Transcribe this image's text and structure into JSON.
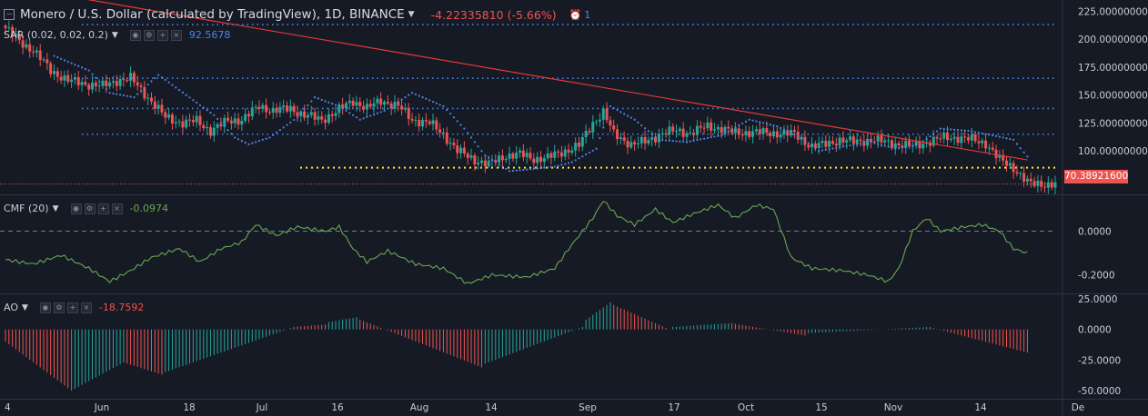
{
  "header": {
    "title": "Monero / U.S. Dollar (calculated by TradingView), 1D, BINANCE",
    "change": "-4.22335810 (-5.66%)",
    "badge": "1"
  },
  "current_price_label": "70.38921600",
  "colors": {
    "background": "#161a25",
    "up": "#26a69a",
    "down": "#ef5350",
    "sar": "#4a86e8",
    "cmf": "#6aa84f",
    "trendline": "#e53935",
    "support": "#ffeb3b"
  },
  "chart_data": [
    {
      "type": "candlestick",
      "title": "Monero / U.S. Dollar (calculated by TradingView), 1D, BINANCE",
      "indicator": {
        "name": "SAR (0.02, 0.02, 0.2)",
        "value": "92.5678"
      },
      "x_ticks": [
        "4",
        "Jun",
        "18",
        "Jul",
        "16",
        "Aug",
        "14",
        "Sep",
        "17",
        "Oct",
        "15",
        "Nov",
        "14",
        "De"
      ],
      "y_ticks": [
        "225.00000000",
        "200.00000000",
        "175.00000000",
        "150.00000000",
        "125.00000000",
        "100.00000000"
      ],
      "ylim": [
        62,
        235
      ],
      "close_series": [
        {
          "x": 0,
          "y": 210
        },
        {
          "x": 4,
          "y": 198
        },
        {
          "x": 8,
          "y": 190
        },
        {
          "x": 13,
          "y": 172
        },
        {
          "x": 18,
          "y": 163
        },
        {
          "x": 23,
          "y": 160
        },
        {
          "x": 28,
          "y": 158
        },
        {
          "x": 32,
          "y": 163
        },
        {
          "x": 36,
          "y": 165
        },
        {
          "x": 41,
          "y": 148
        },
        {
          "x": 46,
          "y": 130
        },
        {
          "x": 51,
          "y": 125
        },
        {
          "x": 55,
          "y": 127
        },
        {
          "x": 59,
          "y": 118
        },
        {
          "x": 64,
          "y": 127
        },
        {
          "x": 68,
          "y": 128
        },
        {
          "x": 73,
          "y": 140
        },
        {
          "x": 77,
          "y": 136
        },
        {
          "x": 82,
          "y": 138
        },
        {
          "x": 86,
          "y": 132
        },
        {
          "x": 91,
          "y": 128
        },
        {
          "x": 95,
          "y": 135
        },
        {
          "x": 100,
          "y": 145
        },
        {
          "x": 104,
          "y": 138
        },
        {
          "x": 108,
          "y": 145
        },
        {
          "x": 113,
          "y": 140
        },
        {
          "x": 117,
          "y": 128
        },
        {
          "x": 122,
          "y": 125
        },
        {
          "x": 126,
          "y": 115
        },
        {
          "x": 130,
          "y": 100
        },
        {
          "x": 135,
          "y": 92
        },
        {
          "x": 139,
          "y": 88
        },
        {
          "x": 144,
          "y": 96
        },
        {
          "x": 148,
          "y": 97
        },
        {
          "x": 152,
          "y": 93
        },
        {
          "x": 156,
          "y": 94
        },
        {
          "x": 161,
          "y": 100
        },
        {
          "x": 165,
          "y": 105
        },
        {
          "x": 169,
          "y": 125
        },
        {
          "x": 172,
          "y": 135
        },
        {
          "x": 175,
          "y": 115
        },
        {
          "x": 180,
          "y": 106
        },
        {
          "x": 184,
          "y": 108
        },
        {
          "x": 189,
          "y": 116
        },
        {
          "x": 193,
          "y": 118
        },
        {
          "x": 197,
          "y": 116
        },
        {
          "x": 202,
          "y": 122
        },
        {
          "x": 206,
          "y": 120
        },
        {
          "x": 210,
          "y": 116
        },
        {
          "x": 215,
          "y": 117
        },
        {
          "x": 219,
          "y": 116
        },
        {
          "x": 223,
          "y": 116
        },
        {
          "x": 227,
          "y": 115
        },
        {
          "x": 232,
          "y": 104
        },
        {
          "x": 236,
          "y": 106
        },
        {
          "x": 240,
          "y": 110
        },
        {
          "x": 244,
          "y": 108
        },
        {
          "x": 249,
          "y": 110
        },
        {
          "x": 253,
          "y": 108
        },
        {
          "x": 257,
          "y": 106
        },
        {
          "x": 261,
          "y": 104
        },
        {
          "x": 265,
          "y": 108
        },
        {
          "x": 270,
          "y": 112
        },
        {
          "x": 274,
          "y": 112
        },
        {
          "x": 278,
          "y": 110
        },
        {
          "x": 282,
          "y": 107
        },
        {
          "x": 286,
          "y": 92
        },
        {
          "x": 290,
          "y": 85
        },
        {
          "x": 294,
          "y": 72
        },
        {
          "x": 295,
          "y": 70.39
        }
      ],
      "sar_series": [
        {
          "x": 14,
          "y": 185
        },
        {
          "x": 24,
          "y": 172
        },
        {
          "x": 30,
          "y": 152
        },
        {
          "x": 37,
          "y": 148
        },
        {
          "x": 44,
          "y": 168
        },
        {
          "x": 52,
          "y": 150
        },
        {
          "x": 60,
          "y": 132
        },
        {
          "x": 66,
          "y": 112
        },
        {
          "x": 70,
          "y": 106
        },
        {
          "x": 76,
          "y": 112
        },
        {
          "x": 84,
          "y": 130
        },
        {
          "x": 89,
          "y": 148
        },
        {
          "x": 96,
          "y": 140
        },
        {
          "x": 102,
          "y": 128
        },
        {
          "x": 109,
          "y": 136
        },
        {
          "x": 117,
          "y": 152
        },
        {
          "x": 126,
          "y": 140
        },
        {
          "x": 132,
          "y": 120
        },
        {
          "x": 138,
          "y": 96
        },
        {
          "x": 145,
          "y": 82
        },
        {
          "x": 152,
          "y": 84
        },
        {
          "x": 158,
          "y": 86
        },
        {
          "x": 163,
          "y": 90
        },
        {
          "x": 170,
          "y": 102
        },
        {
          "x": 174,
          "y": 140
        },
        {
          "x": 181,
          "y": 128
        },
        {
          "x": 188,
          "y": 110
        },
        {
          "x": 196,
          "y": 108
        },
        {
          "x": 206,
          "y": 114
        },
        {
          "x": 214,
          "y": 128
        },
        {
          "x": 222,
          "y": 122
        },
        {
          "x": 229,
          "y": 112
        },
        {
          "x": 234,
          "y": 100
        },
        {
          "x": 241,
          "y": 104
        },
        {
          "x": 249,
          "y": 108
        },
        {
          "x": 256,
          "y": 102
        },
        {
          "x": 263,
          "y": 106
        },
        {
          "x": 269,
          "y": 120
        },
        {
          "x": 277,
          "y": 118
        },
        {
          "x": 284,
          "y": 114
        },
        {
          "x": 290,
          "y": 110
        },
        {
          "x": 294,
          "y": 95
        }
      ],
      "horizontal_levels": [
        213,
        165,
        138,
        115
      ],
      "support_level": 85,
      "trendline": [
        {
          "x": 15,
          "y": 240
        },
        {
          "x": 294,
          "y": 92
        }
      ]
    },
    {
      "type": "line",
      "indicator": {
        "name": "CMF (20)",
        "value": "-0.0974"
      },
      "y_ticks": [
        "0.0000",
        "-0.2000"
      ],
      "ylim": [
        -0.28,
        0.16
      ],
      "series": [
        {
          "values": [
            {
              "x": 0,
              "y": -0.13
            },
            {
              "x": 8,
              "y": -0.15
            },
            {
              "x": 16,
              "y": -0.11
            },
            {
              "x": 24,
              "y": -0.17
            },
            {
              "x": 30,
              "y": -0.23
            },
            {
              "x": 36,
              "y": -0.18
            },
            {
              "x": 42,
              "y": -0.12
            },
            {
              "x": 50,
              "y": -0.08
            },
            {
              "x": 56,
              "y": -0.14
            },
            {
              "x": 62,
              "y": -0.08
            },
            {
              "x": 68,
              "y": -0.05
            },
            {
              "x": 72,
              "y": 0.03
            },
            {
              "x": 78,
              "y": -0.02
            },
            {
              "x": 84,
              "y": 0.02
            },
            {
              "x": 92,
              "y": 0.0
            },
            {
              "x": 96,
              "y": 0.02
            },
            {
              "x": 100,
              "y": -0.08
            },
            {
              "x": 104,
              "y": -0.14
            },
            {
              "x": 110,
              "y": -0.09
            },
            {
              "x": 118,
              "y": -0.15
            },
            {
              "x": 126,
              "y": -0.17
            },
            {
              "x": 133,
              "y": -0.24
            },
            {
              "x": 140,
              "y": -0.2
            },
            {
              "x": 150,
              "y": -0.21
            },
            {
              "x": 158,
              "y": -0.17
            },
            {
              "x": 163,
              "y": -0.06
            },
            {
              "x": 169,
              "y": 0.06
            },
            {
              "x": 172,
              "y": 0.14
            },
            {
              "x": 176,
              "y": 0.07
            },
            {
              "x": 181,
              "y": 0.03
            },
            {
              "x": 187,
              "y": 0.1
            },
            {
              "x": 192,
              "y": 0.04
            },
            {
              "x": 198,
              "y": 0.08
            },
            {
              "x": 205,
              "y": 0.12
            },
            {
              "x": 210,
              "y": 0.06
            },
            {
              "x": 216,
              "y": 0.12
            },
            {
              "x": 221,
              "y": 0.1
            },
            {
              "x": 226,
              "y": -0.12
            },
            {
              "x": 232,
              "y": -0.17
            },
            {
              "x": 241,
              "y": -0.18
            },
            {
              "x": 248,
              "y": -0.2
            },
            {
              "x": 254,
              "y": -0.23
            },
            {
              "x": 257,
              "y": -0.17
            },
            {
              "x": 261,
              "y": 0.0
            },
            {
              "x": 265,
              "y": 0.06
            },
            {
              "x": 269,
              "y": 0.0
            },
            {
              "x": 276,
              "y": 0.02
            },
            {
              "x": 281,
              "y": 0.03
            },
            {
              "x": 286,
              "y": 0.0
            },
            {
              "x": 290,
              "y": -0.08
            },
            {
              "x": 294,
              "y": -0.1
            }
          ]
        }
      ]
    },
    {
      "type": "bar",
      "indicator": {
        "name": "AO",
        "value": "-18.7592"
      },
      "y_ticks": [
        "25.0000",
        "0.0000",
        "-25.0000",
        "-50.0000"
      ],
      "ylim": [
        -56,
        28
      ],
      "segments": [
        {
          "x0": 0,
          "x1": 18,
          "v0": -10,
          "v1": -48,
          "color": "red"
        },
        {
          "x0": 19,
          "x1": 34,
          "v0": -50,
          "v1": -27,
          "color": "green"
        },
        {
          "x0": 35,
          "x1": 45,
          "v0": -28,
          "v1": -37,
          "color": "red"
        },
        {
          "x0": 46,
          "x1": 82,
          "v0": -35,
          "v1": 1,
          "color": "green"
        },
        {
          "x0": 83,
          "x1": 92,
          "v0": 2,
          "v1": 4,
          "color": "red"
        },
        {
          "x0": 93,
          "x1": 101,
          "v0": 6,
          "v1": 10,
          "color": "green"
        },
        {
          "x0": 102,
          "x1": 137,
          "v0": 8,
          "v1": -31,
          "color": "red"
        },
        {
          "x0": 138,
          "x1": 166,
          "v0": -28,
          "v1": 2,
          "color": "green"
        },
        {
          "x0": 167,
          "x1": 174,
          "v0": 8,
          "v1": 22,
          "color": "green"
        },
        {
          "x0": 175,
          "x1": 191,
          "v0": 20,
          "v1": 0,
          "color": "red"
        },
        {
          "x0": 192,
          "x1": 208,
          "v0": 2,
          "v1": 5,
          "color": "green"
        },
        {
          "x0": 209,
          "x1": 230,
          "v0": 5,
          "v1": -5,
          "color": "red"
        },
        {
          "x0": 231,
          "x1": 266,
          "v0": -3,
          "v1": 2,
          "color": "green"
        },
        {
          "x0": 267,
          "x1": 294,
          "v0": 1,
          "v1": -19,
          "color": "red"
        }
      ]
    }
  ]
}
